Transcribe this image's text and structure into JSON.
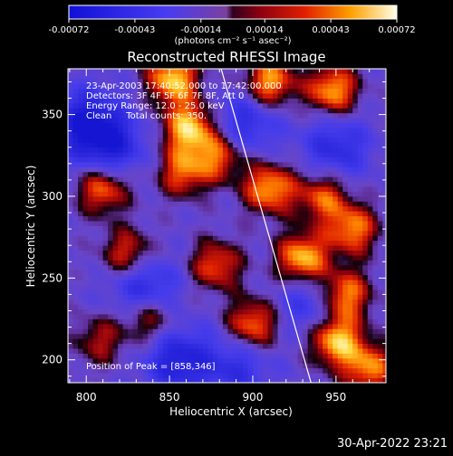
{
  "chart_data": {
    "type": "heatmap",
    "title": "Reconstructed RHESSI Image",
    "xlabel": "Heliocentric X (arcsec)",
    "ylabel": "Heliocentric Y (arcsec)",
    "xlim": [
      789,
      980
    ],
    "ylim": [
      186,
      378
    ],
    "xticks": [
      800,
      850,
      900,
      950
    ],
    "yticks": [
      200,
      250,
      300,
      350
    ],
    "colorbar": {
      "range": [
        -0.00072,
        0.00072
      ],
      "tick_labels": [
        "-0.00072",
        "-0.00043",
        "-0.00014",
        "0.00014",
        "0.00043",
        "0.00072"
      ],
      "unit_label": "(photons cm⁻² s⁻¹ asec⁻²)"
    },
    "annotations": [
      "23-Apr-2003 17:40:52.000 to 17:42:00.000",
      "Detectors: 3F 4F 5F 6F 7F 8F, Att 0",
      "Energy Range: 12.0 - 25.0 keV",
      "Clean     Total counts: 350."
    ],
    "peak_label": "Position of Peak = [858,346]",
    "peak": [
      858,
      346
    ],
    "limb_line": [
      [
        881,
        378
      ],
      [
        935,
        186
      ]
    ],
    "hotspots": [
      {
        "x": 852,
        "y": 372,
        "a": 1.0
      },
      {
        "x": 910,
        "y": 370,
        "a": 0.9
      },
      {
        "x": 948,
        "y": 365,
        "a": 0.9
      },
      {
        "x": 862,
        "y": 342,
        "a": 1.0
      },
      {
        "x": 880,
        "y": 325,
        "a": 0.7
      },
      {
        "x": 810,
        "y": 305,
        "a": 0.8
      },
      {
        "x": 858,
        "y": 315,
        "a": 0.7
      },
      {
        "x": 910,
        "y": 305,
        "a": 0.9
      },
      {
        "x": 942,
        "y": 300,
        "a": 0.7
      },
      {
        "x": 960,
        "y": 280,
        "a": 0.8
      },
      {
        "x": 825,
        "y": 265,
        "a": 0.7
      },
      {
        "x": 878,
        "y": 258,
        "a": 0.7
      },
      {
        "x": 930,
        "y": 262,
        "a": 1.0
      },
      {
        "x": 955,
        "y": 240,
        "a": 0.9
      },
      {
        "x": 838,
        "y": 225,
        "a": 0.6
      },
      {
        "x": 900,
        "y": 222,
        "a": 0.8
      },
      {
        "x": 950,
        "y": 212,
        "a": 1.0
      },
      {
        "x": 970,
        "y": 195,
        "a": 0.8
      },
      {
        "x": 808,
        "y": 212,
        "a": 0.5
      }
    ],
    "coldspots": [
      {
        "x": 800,
        "y": 345,
        "a": 1.0
      },
      {
        "x": 815,
        "y": 330,
        "a": 0.8
      },
      {
        "x": 895,
        "y": 345,
        "a": 0.7
      },
      {
        "x": 950,
        "y": 330,
        "a": 0.7
      },
      {
        "x": 835,
        "y": 245,
        "a": 0.8
      },
      {
        "x": 855,
        "y": 200,
        "a": 0.9
      },
      {
        "x": 935,
        "y": 235,
        "a": 0.6
      },
      {
        "x": 890,
        "y": 195,
        "a": 0.6
      }
    ]
  },
  "timestamp": "30-Apr-2022 23:21"
}
